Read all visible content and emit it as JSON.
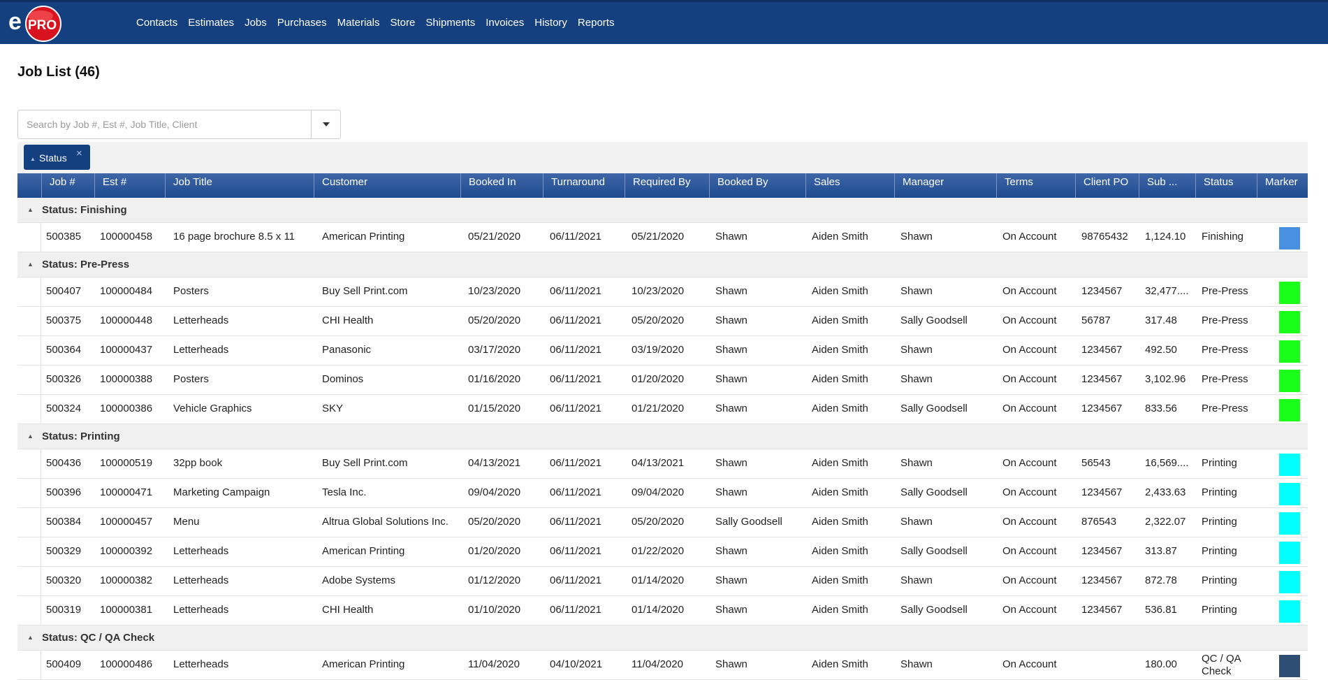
{
  "app": {
    "logo_text": "ePRO",
    "brand_color": "#15407f"
  },
  "nav": [
    "Contacts",
    "Estimates",
    "Jobs",
    "Purchases",
    "Materials",
    "Store",
    "Shipments",
    "Invoices",
    "History",
    "Reports"
  ],
  "page": {
    "title": "Job List (46)"
  },
  "search": {
    "placeholder": "Search by Job #, Est #, Job Title, Client",
    "value": ""
  },
  "grouping": {
    "chip_label": "Status",
    "close_symbol": "×"
  },
  "columns": [
    "Job #",
    "Est #",
    "Job Title",
    "Customer",
    "Booked In",
    "Turnaround",
    "Required By",
    "Booked By",
    "Sales",
    "Manager",
    "Terms",
    "Client PO",
    "Sub ...",
    "Status",
    "Marker"
  ],
  "groups": [
    {
      "label": "Status: Finishing",
      "rows": [
        {
          "job": "500385",
          "est": "100000458",
          "title": "16 page brochure 8.5 x 11",
          "customer": "American Printing",
          "booked_in": "05/21/2020",
          "turnaround": "06/11/2021",
          "required_by": "05/21/2020",
          "booked_by": "Shawn",
          "sales": "Aiden Smith",
          "manager": "Shawn",
          "terms": "On Account",
          "client_po": "98765432",
          "sub": "1,124.10",
          "status": "Finishing",
          "marker_color": "#4a90e2"
        }
      ]
    },
    {
      "label": "Status: Pre-Press",
      "rows": [
        {
          "job": "500407",
          "est": "100000484",
          "title": "Posters",
          "customer": "Buy Sell Print.com",
          "booked_in": "10/23/2020",
          "turnaround": "06/11/2021",
          "required_by": "10/23/2020",
          "booked_by": "Shawn",
          "sales": "Aiden Smith",
          "manager": "Shawn",
          "terms": "On Account",
          "client_po": "1234567",
          "sub": "32,477....",
          "status": "Pre-Press",
          "marker_color": "#1aff1a"
        },
        {
          "job": "500375",
          "est": "100000448",
          "title": "Letterheads",
          "customer": "CHI Health",
          "booked_in": "05/20/2020",
          "turnaround": "06/11/2021",
          "required_by": "05/20/2020",
          "booked_by": "Shawn",
          "sales": "Aiden Smith",
          "manager": "Sally Goodsell",
          "terms": "On Account",
          "client_po": "56787",
          "sub": "317.48",
          "status": "Pre-Press",
          "marker_color": "#1aff1a"
        },
        {
          "job": "500364",
          "est": "100000437",
          "title": "Letterheads",
          "customer": "Panasonic",
          "booked_in": "03/17/2020",
          "turnaround": "06/11/2021",
          "required_by": "03/19/2020",
          "booked_by": "Shawn",
          "sales": "Aiden Smith",
          "manager": "Shawn",
          "terms": "On Account",
          "client_po": "1234567",
          "sub": "492.50",
          "status": "Pre-Press",
          "marker_color": "#1aff1a"
        },
        {
          "job": "500326",
          "est": "100000388",
          "title": "Posters",
          "customer": "Dominos",
          "booked_in": "01/16/2020",
          "turnaround": "06/11/2021",
          "required_by": "01/20/2020",
          "booked_by": "Shawn",
          "sales": "Aiden Smith",
          "manager": "Shawn",
          "terms": "On Account",
          "client_po": "1234567",
          "sub": "3,102.96",
          "status": "Pre-Press",
          "marker_color": "#1aff1a"
        },
        {
          "job": "500324",
          "est": "100000386",
          "title": "Vehicle Graphics",
          "customer": "SKY",
          "booked_in": "01/15/2020",
          "turnaround": "06/11/2021",
          "required_by": "01/21/2020",
          "booked_by": "Shawn",
          "sales": "Aiden Smith",
          "manager": "Sally Goodsell",
          "terms": "On Account",
          "client_po": "1234567",
          "sub": "833.56",
          "status": "Pre-Press",
          "marker_color": "#1aff1a"
        }
      ]
    },
    {
      "label": "Status: Printing",
      "rows": [
        {
          "job": "500436",
          "est": "100000519",
          "title": "32pp book",
          "customer": "Buy Sell Print.com",
          "booked_in": "04/13/2021",
          "turnaround": "06/11/2021",
          "required_by": "04/13/2021",
          "booked_by": "Shawn",
          "sales": "Aiden Smith",
          "manager": "Shawn",
          "terms": "On Account",
          "client_po": "56543",
          "sub": "16,569....",
          "status": "Printing",
          "marker_color": "#00ffff"
        },
        {
          "job": "500396",
          "est": "100000471",
          "title": "Marketing Campaign",
          "customer": "Tesla Inc.",
          "booked_in": "09/04/2020",
          "turnaround": "06/11/2021",
          "required_by": "09/04/2020",
          "booked_by": "Shawn",
          "sales": "Aiden Smith",
          "manager": "Sally Goodsell",
          "terms": "On Account",
          "client_po": "1234567",
          "sub": "2,433.63",
          "status": "Printing",
          "marker_color": "#00ffff"
        },
        {
          "job": "500384",
          "est": "100000457",
          "title": "Menu",
          "customer": "Altrua Global Solutions Inc.",
          "booked_in": "05/20/2020",
          "turnaround": "06/11/2021",
          "required_by": "05/20/2020",
          "booked_by": "Sally Goodsell",
          "sales": "Aiden Smith",
          "manager": "Shawn",
          "terms": "On Account",
          "client_po": "876543",
          "sub": "2,322.07",
          "status": "Printing",
          "marker_color": "#00ffff"
        },
        {
          "job": "500329",
          "est": "100000392",
          "title": "Letterheads",
          "customer": "American Printing",
          "booked_in": "01/20/2020",
          "turnaround": "06/11/2021",
          "required_by": "01/22/2020",
          "booked_by": "Shawn",
          "sales": "Aiden Smith",
          "manager": "Sally Goodsell",
          "terms": "On Account",
          "client_po": "1234567",
          "sub": "313.87",
          "status": "Printing",
          "marker_color": "#00ffff"
        },
        {
          "job": "500320",
          "est": "100000382",
          "title": "Letterheads",
          "customer": "Adobe Systems",
          "booked_in": "01/12/2020",
          "turnaround": "06/11/2021",
          "required_by": "01/14/2020",
          "booked_by": "Shawn",
          "sales": "Aiden Smith",
          "manager": "Shawn",
          "terms": "On Account",
          "client_po": "1234567",
          "sub": "872.78",
          "status": "Printing",
          "marker_color": "#00ffff"
        },
        {
          "job": "500319",
          "est": "100000381",
          "title": "Letterheads",
          "customer": "CHI Health",
          "booked_in": "01/10/2020",
          "turnaround": "06/11/2021",
          "required_by": "01/14/2020",
          "booked_by": "Shawn",
          "sales": "Aiden Smith",
          "manager": "Sally Goodsell",
          "terms": "On Account",
          "client_po": "1234567",
          "sub": "536.81",
          "status": "Printing",
          "marker_color": "#00ffff"
        }
      ]
    },
    {
      "label": "Status: QC / QA Check",
      "rows": [
        {
          "job": "500409",
          "est": "100000486",
          "title": "Letterheads",
          "customer": "American Printing",
          "booked_in": "11/04/2020",
          "turnaround": "04/10/2021",
          "required_by": "11/04/2020",
          "booked_by": "Shawn",
          "sales": "Aiden Smith",
          "manager": "Shawn",
          "terms": "On Account",
          "client_po": "",
          "sub": "180.00",
          "status": "QC / QA Check",
          "marker_color": "#2e4f73"
        }
      ]
    }
  ]
}
